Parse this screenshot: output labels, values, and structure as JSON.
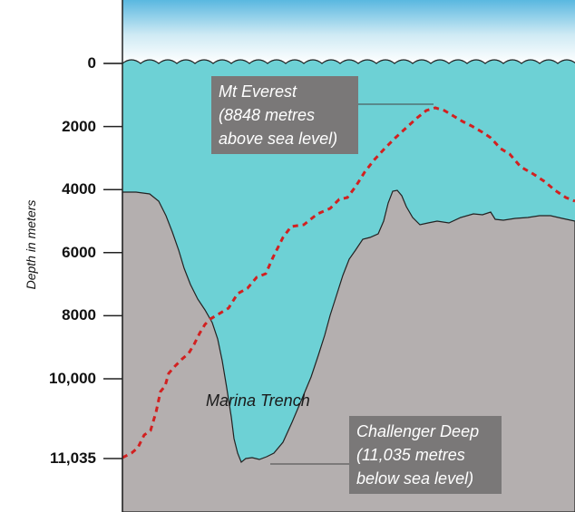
{
  "axis": {
    "label": "Depth in meters",
    "ticks": [
      {
        "label": "0",
        "depth": 0
      },
      {
        "label": "2000",
        "depth": 2000
      },
      {
        "label": "4000",
        "depth": 4000
      },
      {
        "label": "6000",
        "depth": 6000
      },
      {
        "label": "8000",
        "depth": 8000
      },
      {
        "label": "10,000",
        "depth": 10000
      },
      {
        "label": "11,035",
        "depth": 11035
      }
    ]
  },
  "annotations": {
    "everest": {
      "lines": [
        "Mt Everest",
        "(8848 metres",
        "above sea level)"
      ]
    },
    "challenger": {
      "lines": [
        "Challenger Deep",
        "(11,035 metres",
        "below sea level)"
      ]
    },
    "trench": "Marina Trench"
  },
  "colors": {
    "sea": "#6dd1d5",
    "seabed": "#b4afaf",
    "everest_outline": "#d22020",
    "callout_bg": "#7a7878",
    "sky_top": "#5ab8e0"
  }
}
